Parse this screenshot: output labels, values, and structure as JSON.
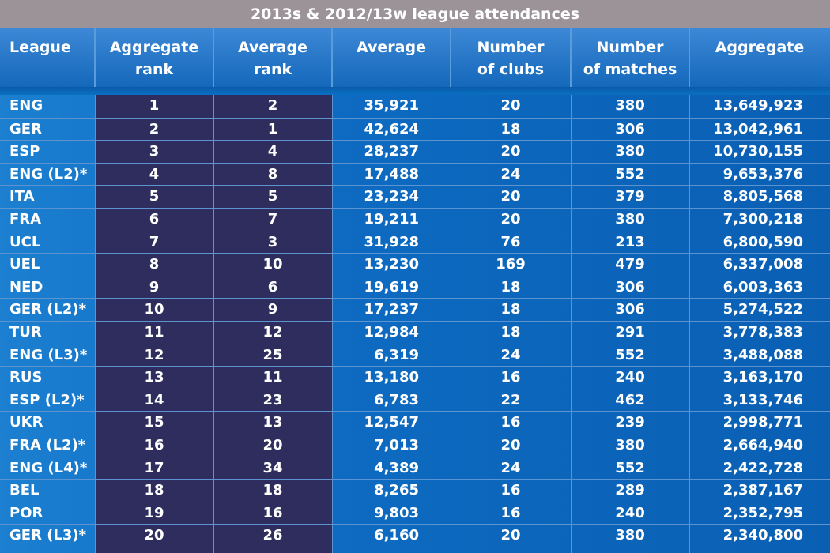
{
  "title": "2013s & 2012/13w league attendances",
  "chart_data": {
    "type": "table",
    "title": "2013s & 2012/13w league attendances",
    "columns": [
      "League",
      "Aggregate rank",
      "Average rank",
      "Average",
      "Number of clubs",
      "Number of matches",
      "Aggregate"
    ],
    "header_lines": [
      [
        "League"
      ],
      [
        "Aggregate",
        "rank"
      ],
      [
        "Average",
        "rank"
      ],
      [
        "Average"
      ],
      [
        "Number",
        "of clubs"
      ],
      [
        "Number",
        "of matches"
      ],
      [
        "Aggregate"
      ]
    ],
    "rows": [
      [
        "ENG",
        "1",
        "2",
        "35,921",
        "20",
        "380",
        "13,649,923"
      ],
      [
        "GER",
        "2",
        "1",
        "42,624",
        "18",
        "306",
        "13,042,961"
      ],
      [
        "ESP",
        "3",
        "4",
        "28,237",
        "20",
        "380",
        "10,730,155"
      ],
      [
        "ENG (L2)*",
        "4",
        "8",
        "17,488",
        "24",
        "552",
        "9,653,376"
      ],
      [
        "ITA",
        "5",
        "5",
        "23,234",
        "20",
        "379",
        "8,805,568"
      ],
      [
        "FRA",
        "6",
        "7",
        "19,211",
        "20",
        "380",
        "7,300,218"
      ],
      [
        "UCL",
        "7",
        "3",
        "31,928",
        "76",
        "213",
        "6,800,590"
      ],
      [
        "UEL",
        "8",
        "10",
        "13,230",
        "169",
        "479",
        "6,337,008"
      ],
      [
        "NED",
        "9",
        "6",
        "19,619",
        "18",
        "306",
        "6,003,363"
      ],
      [
        "GER (L2)*",
        "10",
        "9",
        "17,237",
        "18",
        "306",
        "5,274,522"
      ],
      [
        "TUR",
        "11",
        "12",
        "12,984",
        "18",
        "291",
        "3,778,383"
      ],
      [
        "ENG (L3)*",
        "12",
        "25",
        "6,319",
        "24",
        "552",
        "3,488,088"
      ],
      [
        "RUS",
        "13",
        "11",
        "13,180",
        "16",
        "240",
        "3,163,170"
      ],
      [
        "ESP (L2)*",
        "14",
        "23",
        "6,783",
        "22",
        "462",
        "3,133,746"
      ],
      [
        "UKR",
        "15",
        "13",
        "12,547",
        "16",
        "239",
        "2,998,771"
      ],
      [
        "FRA (L2)*",
        "16",
        "20",
        "7,013",
        "20",
        "380",
        "2,664,940"
      ],
      [
        "ENG (L4)*",
        "17",
        "34",
        "4,389",
        "24",
        "552",
        "2,422,728"
      ],
      [
        "BEL",
        "18",
        "18",
        "8,265",
        "16",
        "289",
        "2,387,167"
      ],
      [
        "POR",
        "19",
        "16",
        "9,803",
        "16",
        "240",
        "2,352,795"
      ],
      [
        "GER (L3)*",
        "20",
        "26",
        "6,160",
        "20",
        "380",
        "2,340,800"
      ]
    ]
  },
  "colors": {
    "title_bg": "#9b9398",
    "header_bg": "#1468bb",
    "rank_bg": "#2e2d5d",
    "body_bg": "#0d6bc1",
    "text": "#ffffff"
  }
}
